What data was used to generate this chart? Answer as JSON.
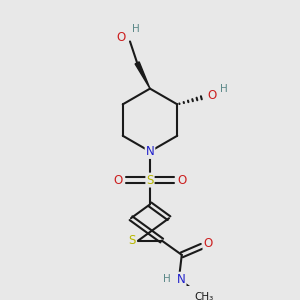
{
  "bg_color": "#e8e8e8",
  "bond_color": "#1a1a1a",
  "N_color": "#2020cc",
  "O_color": "#cc2020",
  "S_color": "#b8b800",
  "H_color": "#5a8888",
  "figsize": [
    3.0,
    3.0
  ],
  "dpi": 100,
  "xlim": [
    0,
    10
  ],
  "ylim": [
    0,
    10
  ]
}
